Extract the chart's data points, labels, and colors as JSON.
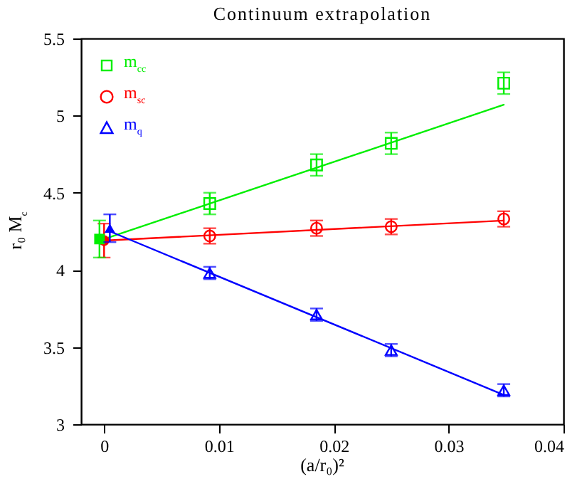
{
  "chart_data": {
    "type": "scatter",
    "title": "Continuum extrapolation",
    "xlabel": "(a/r₀)²",
    "ylabel": "r₀ M$_{c}$",
    "x": [
      0.0092,
      0.0185,
      0.025,
      0.0348
    ],
    "series": [
      {
        "name": "m$_{cc}$",
        "color": "#00ee00",
        "marker": "square",
        "values": [
          4.43,
          4.68,
          4.82,
          5.21
        ],
        "errors": [
          0.07,
          0.07,
          0.07,
          0.07
        ]
      },
      {
        "name": "m$_{sc}$",
        "color": "#ff0000",
        "marker": "circle",
        "values": [
          4.22,
          4.27,
          4.28,
          4.33
        ],
        "errors": [
          0.05,
          0.05,
          0.05,
          0.05
        ]
      },
      {
        "name": "m$_{q}$",
        "color": "#0000ff",
        "marker": "triangle",
        "values": [
          3.98,
          3.71,
          3.48,
          3.22
        ],
        "errors": [
          0.04,
          0.04,
          0.04,
          0.04
        ]
      },
      {
        "type": "line",
        "color": "#00ee00",
        "x": [
          0,
          0.0348
        ],
        "values": [
          4.2,
          5.07
        ]
      },
      {
        "type": "line",
        "color": "#ff0000",
        "x": [
          0,
          0.0348
        ],
        "values": [
          4.19,
          4.32
        ]
      },
      {
        "type": "line",
        "color": "#0000ff",
        "x": [
          0.0005,
          0.0348
        ],
        "values": [
          4.25,
          3.19
        ]
      },
      {
        "color": "#ff0000",
        "marker": "circle",
        "x": [
          0
        ],
        "values": [
          4.19
        ],
        "errors": [
          0.11
        ]
      },
      {
        "color": "#00ee00",
        "marker": "square",
        "x": [
          -0.0004
        ],
        "values": [
          4.2
        ],
        "errors": [
          0.12
        ]
      },
      {
        "color": "#0000ff",
        "marker": "triangle",
        "x": [
          0.0005
        ],
        "values": [
          4.27
        ],
        "errors": [
          0.09
        ]
      }
    ],
    "xlim": [
      -0.002,
      0.04
    ],
    "xticks": [
      0,
      0.01,
      0.02,
      0.03,
      0.04
    ],
    "ylim": [
      3,
      5.5
    ],
    "yticks": [
      3,
      3.5,
      4,
      4.5,
      5,
      5.5
    ],
    "grid": false,
    "legend": "top left"
  }
}
